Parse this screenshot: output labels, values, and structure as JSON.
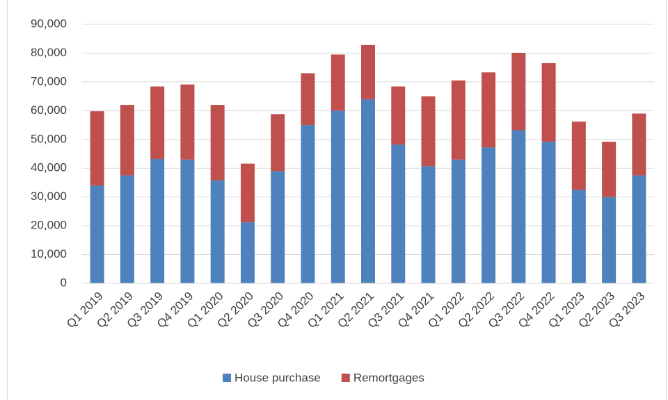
{
  "chart_data": {
    "type": "stacked-bar",
    "categories": [
      "Q1 2019",
      "Q2 2019",
      "Q3 2019",
      "Q4 2019",
      "Q1 2020",
      "Q2 2020",
      "Q3 2020",
      "Q4 2020",
      "Q1 2021",
      "Q2 2021",
      "Q3 2021",
      "Q4 2021",
      "Q1 2022",
      "Q2 2022",
      "Q3 2022",
      "Q4 2022",
      "Q1 2023",
      "Q2 2023",
      "Q3 2023"
    ],
    "series": [
      {
        "name": "House purchase",
        "color": "#4f81bd",
        "values": [
          34000,
          37500,
          43200,
          43000,
          35800,
          21200,
          39000,
          55000,
          60000,
          64000,
          48200,
          40700,
          43000,
          47200,
          53200,
          49200,
          32500,
          30000,
          37500
        ]
      },
      {
        "name": "Remortgages",
        "color": "#c0504d",
        "values": [
          25800,
          24500,
          25200,
          26100,
          26200,
          20400,
          19800,
          18000,
          19500,
          18800,
          20200,
          24300,
          27500,
          26100,
          26900,
          27300,
          23700,
          19200,
          21500
        ]
      }
    ],
    "ylim": [
      0,
      90000
    ],
    "yticks": [
      0,
      {
        "value": 10000,
        "label": "10,000"
      },
      {
        "value": 20000,
        "label": "20,000"
      },
      {
        "value": 30000,
        "label": "30,000"
      },
      {
        "value": 40000,
        "label": "40,000"
      },
      {
        "value": 50000,
        "label": "50,000"
      },
      {
        "value": 60000,
        "label": "60,000"
      },
      {
        "value": 70000,
        "label": "70,000"
      },
      {
        "value": 80000,
        "label": "80,000"
      },
      {
        "value": 90000,
        "label": "90,000"
      }
    ],
    "grid": true
  }
}
